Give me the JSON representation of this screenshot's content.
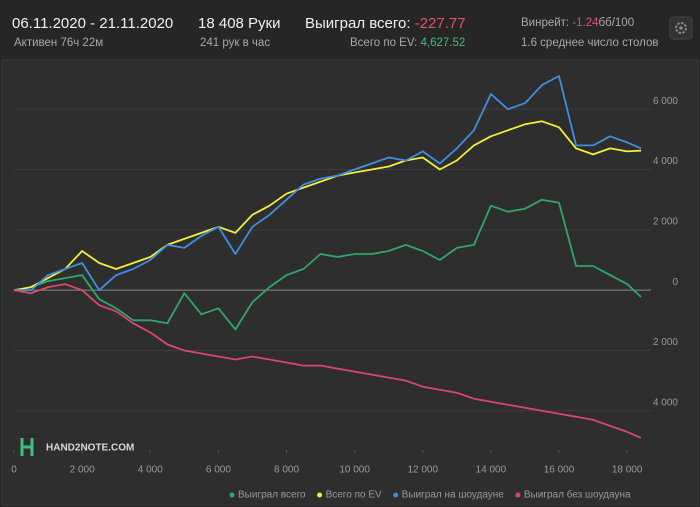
{
  "header": {
    "date_range": "06.11.2020 - 21.11.2020",
    "active": "Активен 76ч 22м",
    "hands": "18 408 Руки",
    "hands_per_hour": "241 рук в час",
    "won_total_label": "Выиграл всего:",
    "won_total_value": "-227.77",
    "ev_label": "Всего по EV:",
    "ev_value": "4,627.52",
    "winrate_label": "Винрейт:",
    "winrate_value": "-1.24",
    "winrate_unit": "бб/100",
    "tables": "1.6 среднее число столов"
  },
  "watermark": "HAND2NOTE.COM",
  "chart_data": {
    "type": "line",
    "x": [
      0,
      500,
      1000,
      1500,
      2000,
      2500,
      3000,
      3500,
      4000,
      4500,
      5000,
      5500,
      6000,
      6500,
      7000,
      7500,
      8000,
      8500,
      9000,
      9500,
      10000,
      10500,
      11000,
      11500,
      12000,
      12500,
      13000,
      13500,
      14000,
      14500,
      15000,
      15500,
      16000,
      16500,
      17000,
      17500,
      18000,
      18408
    ],
    "series": [
      {
        "name": "Выиграл всего",
        "color": "#2ea86a",
        "values": [
          0,
          100,
          300,
          400,
          500,
          -300,
          -600,
          -1000,
          -1000,
          -1100,
          -100,
          -800,
          -600,
          -1300,
          -400,
          100,
          500,
          700,
          1200,
          1100,
          1200,
          1200,
          1300,
          1500,
          1300,
          1000,
          1400,
          1500,
          2800,
          2600,
          2700,
          3000,
          2900,
          800,
          800,
          500,
          200,
          -228
        ]
      },
      {
        "name": "Всего по EV",
        "color": "#f3ee3a",
        "values": [
          0,
          100,
          400,
          700,
          1300,
          900,
          700,
          900,
          1100,
          1500,
          1700,
          1900,
          2100,
          1900,
          2500,
          2800,
          3200,
          3400,
          3600,
          3800,
          3900,
          4000,
          4100,
          4300,
          4400,
          4000,
          4300,
          4800,
          5100,
          5300,
          5500,
          5600,
          5400,
          4700,
          4500,
          4700,
          4600,
          4628
        ]
      },
      {
        "name": "Выиграл на шоудауне",
        "color": "#3f8fe0",
        "values": [
          0,
          0,
          500,
          700,
          900,
          0,
          500,
          700,
          1000,
          1500,
          1400,
          1800,
          2100,
          1200,
          2100,
          2500,
          3000,
          3500,
          3700,
          3800,
          4000,
          4200,
          4400,
          4300,
          4600,
          4200,
          4700,
          5300,
          6500,
          6000,
          6200,
          6800,
          7100,
          4800,
          4800,
          5100,
          4900,
          4700
        ]
      },
      {
        "name": "Выиграл без шоудауна",
        "color": "#d9476f",
        "values": [
          0,
          -100,
          100,
          200,
          0,
          -500,
          -700,
          -1100,
          -1400,
          -1800,
          -2000,
          -2100,
          -2200,
          -2300,
          -2200,
          -2300,
          -2400,
          -2500,
          -2500,
          -2600,
          -2700,
          -2800,
          -2900,
          -3000,
          -3200,
          -3300,
          -3400,
          -3600,
          -3700,
          -3800,
          -3900,
          -4000,
          -4100,
          -4200,
          -4300,
          -4500,
          -4700,
          -4900
        ]
      }
    ],
    "xlim": [
      0,
      18700
    ],
    "ylim": [
      -5300,
      7300
    ],
    "xticks": [
      0,
      {
        "value": 2000,
        "label": "2 000"
      },
      {
        "value": 4000,
        "label": "4 000"
      },
      {
        "value": 6000,
        "label": "6 000"
      },
      {
        "value": 8000,
        "label": "8 000"
      },
      {
        "value": 10000,
        "label": "10 000"
      },
      {
        "value": 12000,
        "label": "12 000"
      },
      {
        "value": 14000,
        "label": "14 000"
      },
      {
        "value": 16000,
        "label": "16 000"
      },
      {
        "value": 18000,
        "label": "18 000"
      }
    ],
    "yticks": [
      {
        "value": -4000,
        "label": "4 000"
      },
      {
        "value": -2000,
        "label": "2 000"
      },
      0,
      {
        "value": 2000,
        "label": "2 000"
      },
      {
        "value": 4000,
        "label": "4 000"
      },
      {
        "value": 6000,
        "label": "6 000"
      }
    ],
    "grid": true,
    "legend": "bottom"
  }
}
